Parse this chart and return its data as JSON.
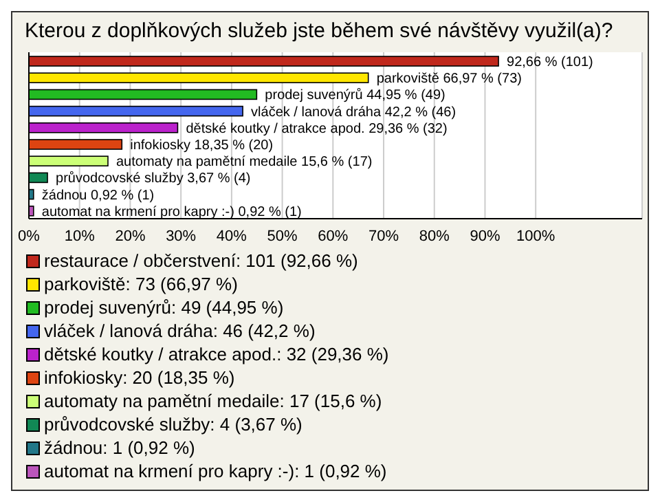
{
  "chart_data": {
    "type": "bar",
    "orientation": "horizontal",
    "stacked": true,
    "title": "Kterou z doplňkových služeb jste během své návštěvy využil(a)?",
    "categories": [
      null,
      null,
      null,
      null,
      null,
      null,
      null,
      null,
      null,
      null
    ],
    "xlim": [
      0,
      121
    ],
    "xticks": [
      {
        "value": 0,
        "label": "0%"
      },
      {
        "value": 10,
        "label": "10%"
      },
      {
        "value": 20,
        "label": "20%"
      },
      {
        "value": 30,
        "label": "30%"
      },
      {
        "value": 40,
        "label": "40%"
      },
      {
        "value": 50,
        "label": "50%"
      },
      {
        "value": 60,
        "label": "60%"
      },
      {
        "value": 70,
        "label": "70%"
      },
      {
        "value": 80,
        "label": "80%"
      },
      {
        "value": 90,
        "label": "90%"
      },
      {
        "value": 100,
        "label": "100%"
      }
    ],
    "tick_labels": "x",
    "grid": "x",
    "legend": "bottom",
    "series": [
      {
        "name": "restaurace / občerstvení: 101 (92,66 %)",
        "color": "#c0281c",
        "values": [
          92.66,
          null,
          null,
          null,
          null,
          null,
          null,
          null,
          null,
          null
        ],
        "value_labels": [
          "92,66 % (101)",
          null,
          null,
          null,
          null,
          null,
          null,
          null,
          null,
          null
        ]
      },
      {
        "name": "parkoviště: 73 (66,97 %)",
        "color": "#ffe600",
        "values": [
          null,
          66.97,
          null,
          null,
          null,
          null,
          null,
          null,
          null,
          null
        ],
        "value_labels": [
          null,
          "parkoviště 66,97 % (73)",
          null,
          null,
          null,
          null,
          null,
          null,
          null,
          null
        ]
      },
      {
        "name": "prodej suvenýrů: 49 (44,95 %)",
        "color": "#22bb22",
        "values": [
          null,
          null,
          44.95,
          null,
          null,
          null,
          null,
          null,
          null,
          null
        ],
        "value_labels": [
          null,
          null,
          "prodej suvenýrů 44,95 % (49)",
          null,
          null,
          null,
          null,
          null,
          null,
          null
        ]
      },
      {
        "name": "vláček / lanová dráha: 46 (42,2 %)",
        "color": "#4466ee",
        "values": [
          null,
          null,
          null,
          42.2,
          null,
          null,
          null,
          null,
          null,
          null
        ],
        "value_labels": [
          null,
          null,
          null,
          "vláček / lanová dráha 42,2 % (46)",
          null,
          null,
          null,
          null,
          null,
          null
        ]
      },
      {
        "name": "dětské koutky / atrakce apod.: 32 (29,36 %)",
        "color": "#bb22cc",
        "values": [
          null,
          null,
          null,
          null,
          29.36,
          null,
          null,
          null,
          null,
          null
        ],
        "value_labels": [
          null,
          null,
          null,
          null,
          "dětské koutky / atrakce apod. 29,36 % (32)",
          null,
          null,
          null,
          null,
          null
        ]
      },
      {
        "name": "infokiosky: 20 (18,35 %)",
        "color": "#dd4411",
        "values": [
          null,
          null,
          null,
          null,
          null,
          18.35,
          null,
          null,
          null,
          null
        ],
        "value_labels": [
          null,
          null,
          null,
          null,
          null,
          "infokiosky 18,35 % (20)",
          null,
          null,
          null,
          null
        ]
      },
      {
        "name": "automaty na pamětní medaile: 17 (15,6 %)",
        "color": "#ccff77",
        "values": [
          null,
          null,
          null,
          null,
          null,
          null,
          15.6,
          null,
          null,
          null
        ],
        "value_labels": [
          null,
          null,
          null,
          null,
          null,
          null,
          "automaty na pamětní medaile 15,6 % (17)",
          null,
          null,
          null
        ]
      },
      {
        "name": "průvodcovské služby: 4 (3,67 %)",
        "color": "#118855",
        "values": [
          null,
          null,
          null,
          null,
          null,
          null,
          null,
          3.67,
          null,
          null
        ],
        "value_labels": [
          null,
          null,
          null,
          null,
          null,
          null,
          null,
          "průvodcovské služby 3,67 % (4)",
          null,
          null
        ]
      },
      {
        "name": "žádnou: 1 (0,92 %)",
        "color": "#227788",
        "values": [
          null,
          null,
          null,
          null,
          null,
          null,
          null,
          null,
          0.92,
          null
        ],
        "value_labels": [
          null,
          null,
          null,
          null,
          null,
          null,
          null,
          null,
          "žádnou 0,92 % (1)",
          null
        ]
      },
      {
        "name": "automat na krmení pro kapry :-): 1 (0,92 %)",
        "color": "#bb55bb",
        "values": [
          null,
          null,
          null,
          null,
          null,
          null,
          null,
          null,
          null,
          0.92
        ],
        "value_labels": [
          null,
          null,
          null,
          null,
          null,
          null,
          null,
          null,
          null,
          "automat na krmení pro kapry :-) 0,92 % (1)"
        ]
      }
    ]
  }
}
